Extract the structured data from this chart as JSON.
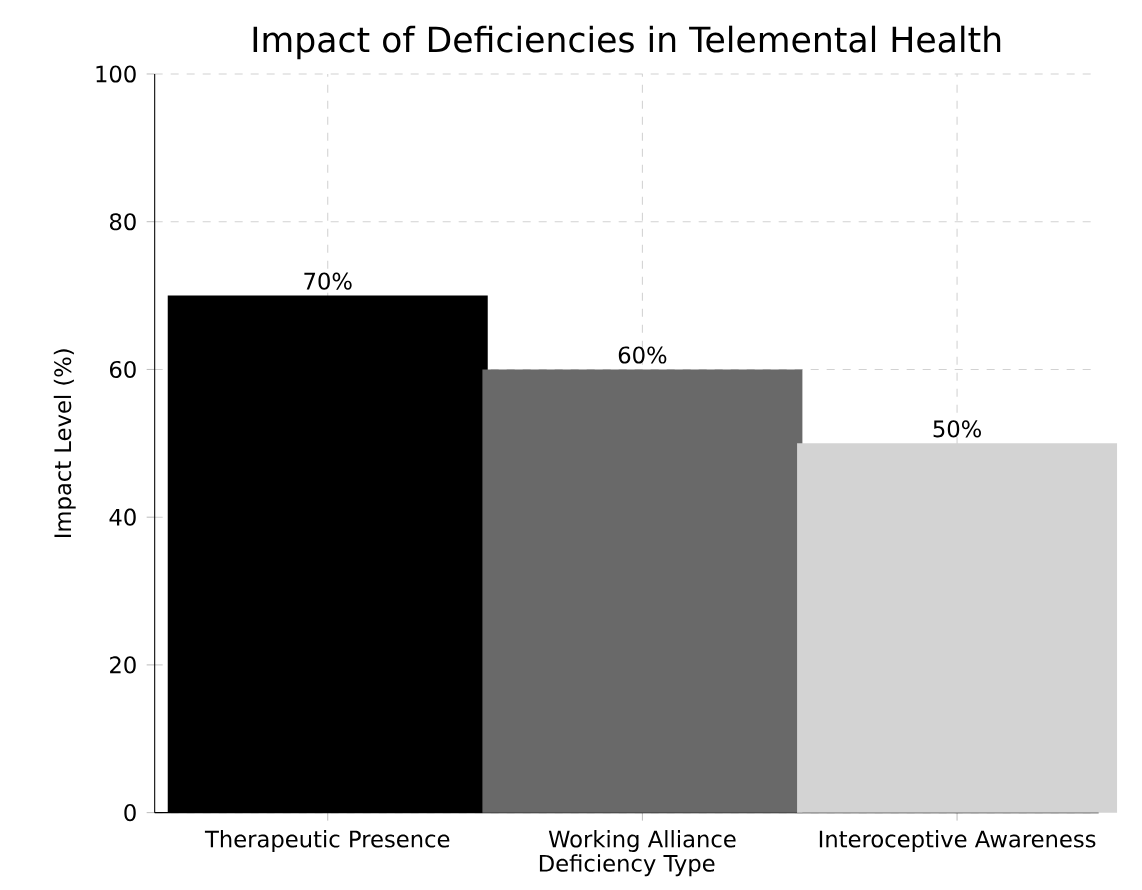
{
  "chart_data": {
    "type": "bar",
    "title": "Impact of Deficiencies in Telemental Health",
    "xlabel": "Deficiency Type",
    "ylabel": "Impact Level (%)",
    "categories": [
      "Therapeutic Presence",
      "Working Alliance",
      "Interoceptive Awareness"
    ],
    "values": [
      70,
      60,
      50
    ],
    "colors": [
      "#000000",
      "#696969",
      "#d3d3d3"
    ],
    "value_labels": [
      "70%",
      "60%",
      "50%"
    ],
    "ylim": [
      0,
      100
    ],
    "yticks": [
      0,
      20,
      40,
      60,
      80,
      100
    ],
    "grid": true
  }
}
